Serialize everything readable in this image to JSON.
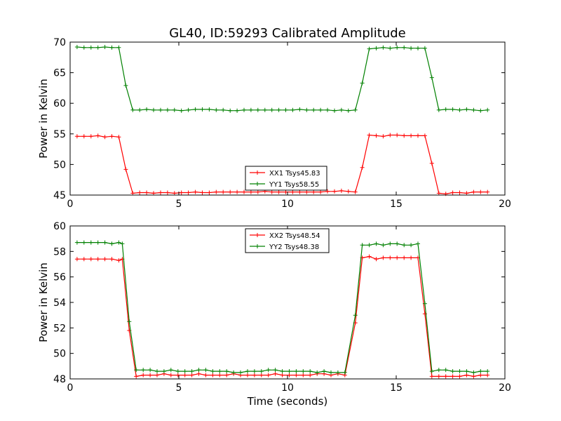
{
  "figure": {
    "title": "GL40, ID:59293 Calibrated Amplitude"
  },
  "chart_data": [
    {
      "type": "line",
      "title": "GL40, ID:59293 Calibrated Amplitude",
      "xlabel": "",
      "ylabel": "Power in Kelvin",
      "xlim": [
        0,
        20
      ],
      "ylim": [
        45,
        70
      ],
      "xticks": [
        "0",
        "5",
        "10",
        "15",
        "20"
      ],
      "yticks": [
        "45",
        "50",
        "55",
        "60",
        "65",
        "70"
      ],
      "grid": false,
      "legend_position": "bottom-center",
      "x": [
        0.32,
        0.64,
        0.96,
        1.28,
        1.6,
        1.92,
        2.24,
        2.56,
        2.88,
        3.2,
        3.52,
        3.84,
        4.16,
        4.48,
        4.8,
        5.12,
        5.44,
        5.76,
        6.08,
        6.4,
        6.72,
        7.04,
        7.36,
        7.68,
        8.0,
        8.32,
        8.64,
        8.96,
        9.28,
        9.6,
        9.92,
        10.24,
        10.56,
        10.88,
        11.2,
        11.52,
        11.84,
        12.16,
        12.48,
        12.8,
        13.12,
        13.44,
        13.76,
        14.08,
        14.4,
        14.72,
        15.04,
        15.36,
        15.68,
        16.0,
        16.32,
        16.64,
        16.96,
        17.28,
        17.6,
        17.92,
        18.24,
        18.56,
        18.88,
        19.2
      ],
      "series": [
        {
          "name": "XX1 Tsys45.83",
          "color": "#ff0000",
          "values": [
            54.6,
            54.6,
            54.6,
            54.7,
            54.5,
            54.6,
            54.5,
            49.2,
            45.3,
            45.4,
            45.4,
            45.3,
            45.4,
            45.4,
            45.3,
            45.4,
            45.4,
            45.5,
            45.4,
            45.4,
            45.5,
            45.5,
            45.5,
            45.5,
            45.5,
            45.5,
            45.5,
            45.6,
            45.5,
            45.5,
            45.5,
            45.5,
            45.5,
            45.5,
            45.5,
            45.5,
            45.6,
            45.6,
            45.7,
            45.6,
            45.5,
            49.5,
            54.8,
            54.7,
            54.6,
            54.8,
            54.8,
            54.7,
            54.7,
            54.7,
            54.7,
            50.2,
            45.3,
            45.2,
            45.4,
            45.4,
            45.3,
            45.5,
            45.5,
            45.5
          ]
        },
        {
          "name": "YY1 Tsys58.55",
          "color": "#008000",
          "values": [
            69.2,
            69.1,
            69.1,
            69.1,
            69.2,
            69.1,
            69.1,
            62.9,
            58.9,
            58.9,
            59.0,
            58.9,
            58.9,
            58.9,
            58.9,
            58.8,
            58.9,
            59.0,
            59.0,
            59.0,
            58.9,
            58.9,
            58.8,
            58.8,
            58.9,
            58.9,
            58.9,
            58.9,
            58.9,
            58.9,
            58.9,
            58.9,
            59.0,
            58.9,
            58.9,
            58.9,
            58.9,
            58.8,
            58.9,
            58.8,
            58.9,
            63.3,
            68.9,
            69.0,
            69.1,
            69.0,
            69.1,
            69.1,
            69.0,
            69.0,
            69.0,
            64.2,
            58.9,
            59.0,
            59.0,
            58.9,
            59.0,
            58.9,
            58.8,
            58.9
          ]
        }
      ]
    },
    {
      "type": "line",
      "title": "",
      "xlabel": "Time (seconds)",
      "ylabel": "Power in Kelvin",
      "xlim": [
        0,
        20
      ],
      "ylim": [
        48,
        60
      ],
      "xticks": [
        "0",
        "5",
        "10",
        "15",
        "20"
      ],
      "yticks": [
        "48",
        "50",
        "52",
        "54",
        "56",
        "58",
        "60"
      ],
      "grid": false,
      "legend_position": "top-center",
      "x": [
        0.32,
        0.64,
        0.96,
        1.28,
        1.6,
        1.92,
        2.24,
        2.56,
        2.88,
        3.2,
        3.52,
        3.84,
        4.16,
        4.48,
        4.8,
        5.12,
        5.44,
        5.76,
        6.08,
        6.4,
        6.72,
        7.04,
        7.36,
        7.68,
        8.0,
        8.32,
        8.64,
        8.96,
        9.28,
        9.6,
        9.92,
        10.24,
        10.56,
        10.88,
        11.2,
        11.52,
        11.84,
        12.16,
        12.48,
        12.8,
        13.12,
        13.44,
        13.76,
        14.08,
        14.4,
        14.72,
        15.04,
        15.36,
        15.68,
        16.0,
        16.32,
        16.64,
        16.96,
        17.28,
        17.6,
        17.92,
        18.24,
        18.56,
        18.88,
        19.2
      ],
      "series": [
        {
          "name": "XX2 Tsys48.54",
          "color": "#ff0000",
          "values": [
            57.4,
            57.4,
            57.4,
            57.4,
            57.4,
            57.4,
            57.3,
            57.4,
            51.8,
            48.2,
            48.3,
            48.3,
            48.3,
            48.4,
            48.3,
            48.3,
            48.3,
            48.3,
            48.4,
            48.3,
            48.3,
            48.3,
            48.3,
            48.4,
            48.3,
            48.3,
            48.3,
            48.3,
            48.3,
            48.4,
            48.3,
            48.3,
            48.3,
            48.3,
            48.3,
            48.4,
            48.4,
            48.3,
            48.4,
            48.3,
            52.4,
            57.5,
            57.6,
            57.4,
            57.5,
            57.5,
            57.5,
            57.5,
            57.5,
            57.5,
            53.1,
            48.2,
            48.2,
            48.2,
            48.2,
            48.2,
            48.3,
            48.2,
            48.3,
            48.3
          ],
          "x": [
            0.32,
            0.64,
            0.96,
            1.28,
            1.6,
            1.92,
            2.24,
            2.4,
            2.72,
            3.04,
            3.36,
            3.68,
            4.0,
            4.32,
            4.64,
            4.96,
            5.28,
            5.6,
            5.92,
            6.24,
            6.56,
            6.88,
            7.2,
            7.52,
            7.84,
            8.16,
            8.48,
            8.8,
            9.12,
            9.44,
            9.76,
            10.08,
            10.4,
            10.72,
            11.04,
            11.36,
            11.68,
            12.0,
            12.32,
            12.64,
            13.12,
            13.44,
            13.76,
            14.08,
            14.4,
            14.72,
            15.04,
            15.36,
            15.68,
            16.0,
            16.32,
            16.64,
            16.96,
            17.28,
            17.6,
            17.92,
            18.24,
            18.56,
            18.88,
            19.2
          ]
        },
        {
          "name": "YY2 Tsys48.38",
          "color": "#008000",
          "values": [
            58.7,
            58.7,
            58.7,
            58.7,
            58.7,
            58.6,
            58.7,
            58.6,
            52.5,
            48.7,
            48.7,
            48.7,
            48.6,
            48.6,
            48.7,
            48.6,
            48.6,
            48.6,
            48.7,
            48.7,
            48.6,
            48.6,
            48.6,
            48.5,
            48.5,
            48.6,
            48.6,
            48.6,
            48.7,
            48.7,
            48.6,
            48.6,
            48.6,
            48.6,
            48.6,
            48.5,
            48.6,
            48.5,
            48.5,
            48.5,
            53.0,
            58.5,
            58.5,
            58.6,
            58.5,
            58.6,
            58.6,
            58.5,
            58.5,
            58.6,
            53.9,
            48.6,
            48.7,
            48.7,
            48.6,
            48.6,
            48.6,
            48.5,
            48.6,
            48.6
          ],
          "x": [
            0.32,
            0.64,
            0.96,
            1.28,
            1.6,
            1.92,
            2.24,
            2.4,
            2.72,
            3.04,
            3.36,
            3.68,
            4.0,
            4.32,
            4.64,
            4.96,
            5.28,
            5.6,
            5.92,
            6.24,
            6.56,
            6.88,
            7.2,
            7.52,
            7.84,
            8.16,
            8.48,
            8.8,
            9.12,
            9.44,
            9.76,
            10.08,
            10.4,
            10.72,
            11.04,
            11.36,
            11.68,
            12.0,
            12.32,
            12.64,
            13.12,
            13.44,
            13.76,
            14.08,
            14.4,
            14.72,
            15.04,
            15.36,
            15.68,
            16.0,
            16.32,
            16.64,
            16.96,
            17.28,
            17.6,
            17.92,
            18.24,
            18.56,
            18.88,
            19.2
          ]
        }
      ]
    }
  ]
}
